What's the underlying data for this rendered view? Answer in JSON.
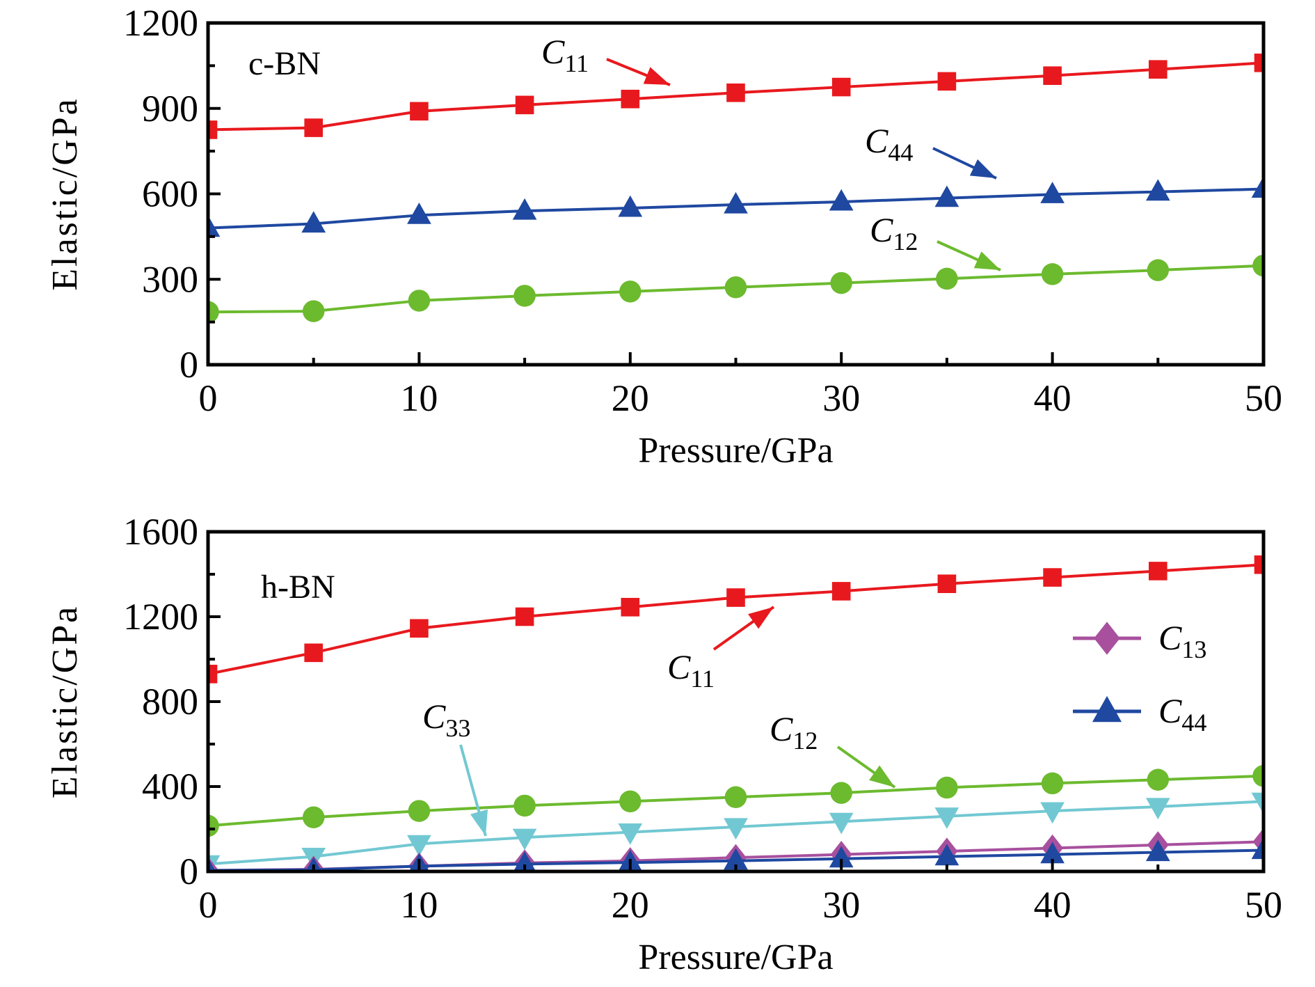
{
  "chart_data": [
    {
      "type": "line",
      "panel_label": "c-BN",
      "xlabel": "Pressure/GPa",
      "ylabel": "Elastic/GPa",
      "xlim": [
        0,
        50
      ],
      "ylim": [
        0,
        1200
      ],
      "xticks": [
        0,
        10,
        20,
        30,
        40,
        50
      ],
      "yticks": [
        0,
        300,
        600,
        900,
        1200
      ],
      "x": [
        0,
        5,
        10,
        15,
        20,
        25,
        30,
        35,
        40,
        45,
        50
      ],
      "grid": false,
      "series": [
        {
          "name": "C11",
          "color": "#e8191e",
          "marker": "square",
          "values": [
            825,
            832,
            890,
            912,
            933,
            955,
            975,
            995,
            1015,
            1037,
            1060
          ]
        },
        {
          "name": "C44",
          "color": "#1f48a0",
          "marker": "triangle-up",
          "values": [
            480,
            495,
            525,
            540,
            550,
            562,
            572,
            585,
            598,
            607,
            617
          ]
        },
        {
          "name": "C12",
          "color": "#6cba2e",
          "marker": "circle",
          "values": [
            185,
            188,
            225,
            242,
            257,
            272,
            287,
            302,
            318,
            332,
            348
          ]
        }
      ],
      "annotations": [
        {
          "text": "C",
          "sub": "11",
          "series": "C11"
        },
        {
          "text": "C",
          "sub": "44",
          "series": "C44"
        },
        {
          "text": "C",
          "sub": "12",
          "series": "C12"
        }
      ]
    },
    {
      "type": "line",
      "panel_label": "h-BN",
      "xlabel": "Pressure/GPa",
      "ylabel": "Elastic/GPa",
      "xlim": [
        0,
        50
      ],
      "ylim": [
        0,
        1600
      ],
      "xticks": [
        0,
        10,
        20,
        30,
        40,
        50
      ],
      "yticks": [
        0,
        400,
        800,
        1200,
        1600
      ],
      "x": [
        0,
        5,
        10,
        15,
        20,
        25,
        30,
        35,
        40,
        45,
        50
      ],
      "grid": false,
      "legend": "right",
      "series": [
        {
          "name": "C11",
          "color": "#e8191e",
          "marker": "square",
          "values": [
            930,
            1030,
            1145,
            1200,
            1245,
            1290,
            1320,
            1355,
            1385,
            1415,
            1445
          ]
        },
        {
          "name": "C12",
          "color": "#6cba2e",
          "marker": "circle",
          "values": [
            215,
            255,
            285,
            310,
            330,
            350,
            370,
            395,
            415,
            432,
            450
          ]
        },
        {
          "name": "C33",
          "color": "#72c8d2",
          "marker": "triangle-down",
          "values": [
            35,
            70,
            130,
            160,
            185,
            210,
            235,
            260,
            285,
            305,
            330
          ]
        },
        {
          "name": "C13",
          "color": "#a8509e",
          "marker": "diamond",
          "values": [
            5,
            10,
            25,
            40,
            50,
            65,
            80,
            95,
            110,
            125,
            140
          ]
        },
        {
          "name": "C44",
          "color": "#1f48a0",
          "marker": "triangle-up",
          "values": [
            5,
            8,
            25,
            35,
            42,
            50,
            60,
            70,
            80,
            90,
            100
          ]
        }
      ],
      "legend_entries": [
        {
          "text": "C",
          "sub": "13",
          "series": "C13"
        },
        {
          "text": "C",
          "sub": "44",
          "series": "C44"
        }
      ],
      "annotations": [
        {
          "text": "C",
          "sub": "11",
          "series": "C11"
        },
        {
          "text": "C",
          "sub": "33",
          "series": "C33"
        },
        {
          "text": "C",
          "sub": "12",
          "series": "C12"
        }
      ]
    }
  ]
}
